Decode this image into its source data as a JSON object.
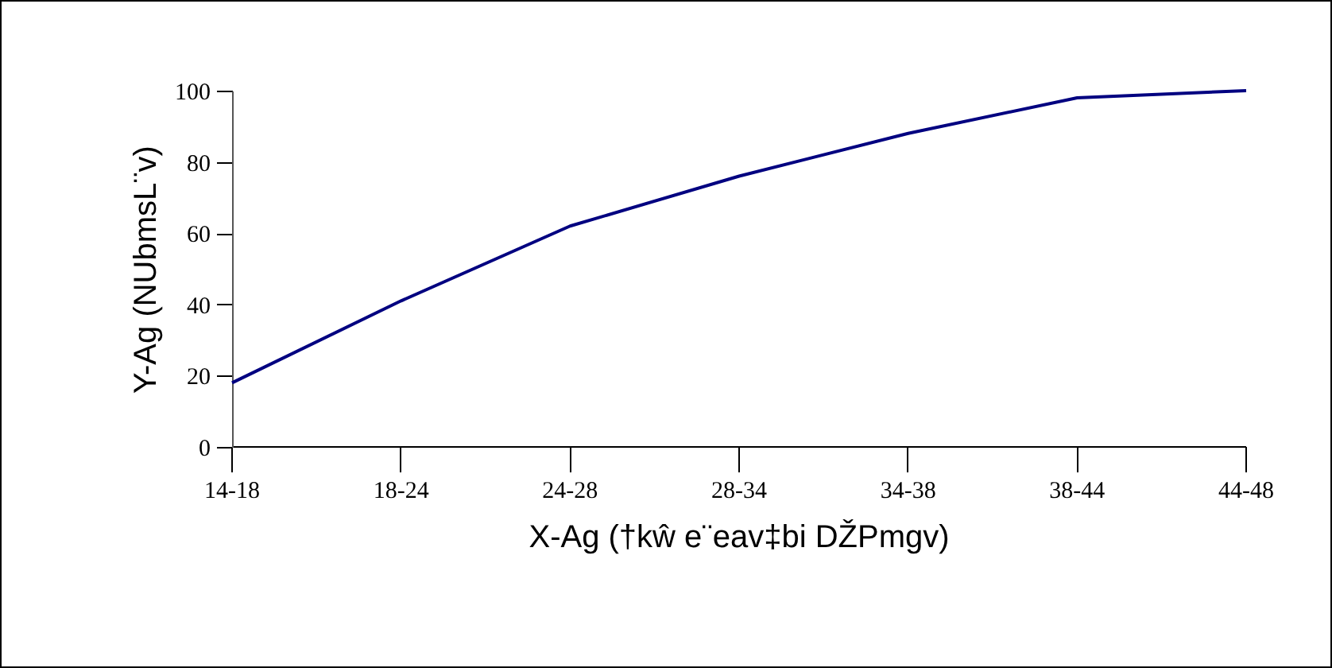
{
  "chart_data": {
    "type": "line",
    "xlabel": "X-Ag (†kŵ e¨eav‡bi DŽPmgv)",
    "ylabel": "Y-Ag (NUbmsL¨v)",
    "categories": [
      "14-18",
      "18-24",
      "24-28",
      "28-34",
      "34-38",
      "38-44",
      "44-48"
    ],
    "series": [
      {
        "color": "#000080",
        "values": [
          18,
          41,
          62,
          76,
          88,
          98,
          100
        ]
      }
    ],
    "ylim": [
      0,
      100
    ],
    "yticks": [
      0,
      20,
      40,
      60,
      80,
      100
    ],
    "grid": false,
    "marker": "none",
    "line_style": "solid"
  }
}
